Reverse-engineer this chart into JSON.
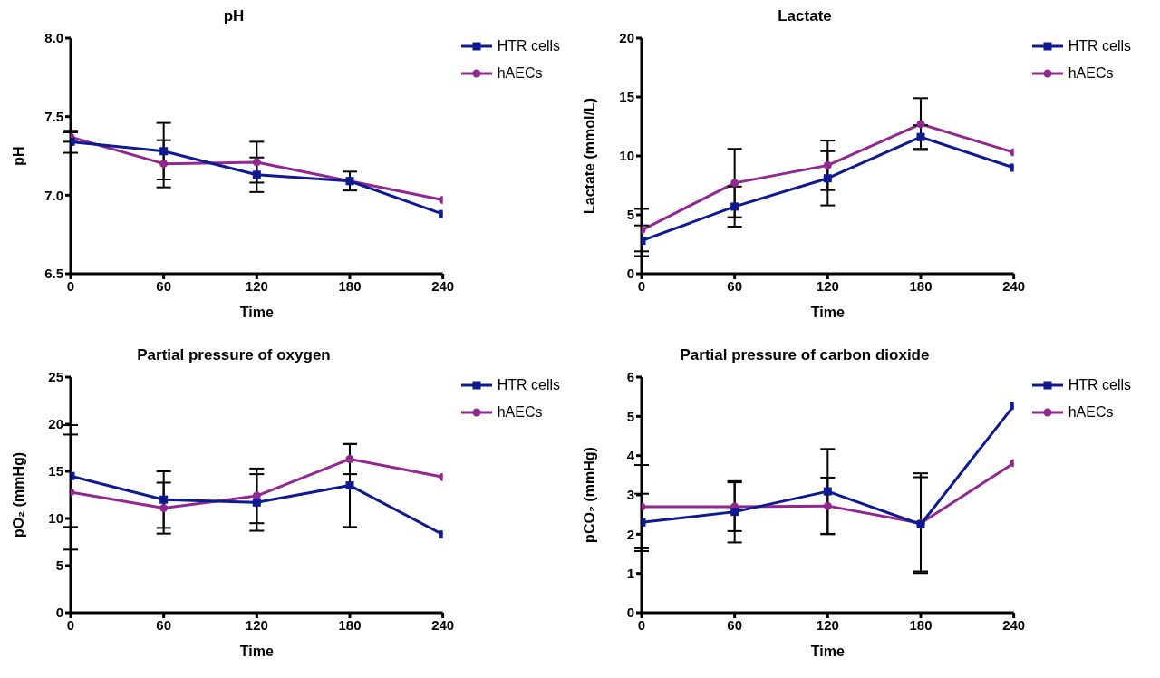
{
  "chart_data": [
    {
      "type": "line",
      "title": "pH",
      "xlabel": "Time",
      "ylabel": "pH",
      "x": [
        0,
        60,
        120,
        180,
        240
      ],
      "xlim": [
        0,
        240
      ],
      "xticks": [
        0,
        60,
        120,
        180,
        240
      ],
      "ylim": [
        6.5,
        8.0
      ],
      "yticks": [
        {
          "value": 6.5,
          "label": "6.5"
        },
        {
          "value": 7.0,
          "label": "7.0"
        },
        {
          "value": 7.5,
          "label": "7.5"
        },
        {
          "value": 8.0,
          "label": "8.0"
        }
      ],
      "grid": false,
      "legend": "top right",
      "series": [
        {
          "name": "HTR cells",
          "color": "#0d1a91",
          "marker": "square",
          "values": [
            7.34,
            7.28,
            7.13,
            7.09,
            6.88
          ],
          "errors": [
            0.07,
            0.18,
            0.11,
            0.06,
            null
          ]
        },
        {
          "name": "hAECs",
          "color": "#92278f",
          "marker": "circle",
          "values": [
            7.37,
            7.2,
            7.21,
            7.09,
            6.97
          ],
          "errors": [
            0.03,
            0.15,
            0.13,
            null,
            null
          ]
        }
      ]
    },
    {
      "type": "line",
      "title": "Lactate",
      "xlabel": "Time",
      "ylabel": "Lactate (mmol/L)",
      "x": [
        0,
        60,
        120,
        180,
        240
      ],
      "xlim": [
        0,
        240
      ],
      "xticks": [
        0,
        60,
        120,
        180,
        240
      ],
      "ylim": [
        0,
        20
      ],
      "yticks": [
        0,
        5,
        10,
        15,
        20
      ],
      "grid": false,
      "legend": "top right",
      "series": [
        {
          "name": "HTR cells",
          "color": "#0d1a91",
          "marker": "square",
          "values": [
            2.8,
            5.7,
            8.1,
            11.6,
            9.0
          ],
          "errors": [
            1.3,
            1.7,
            2.3,
            1.0,
            null
          ]
        },
        {
          "name": "hAECs",
          "color": "#92278f",
          "marker": "circle",
          "values": [
            3.7,
            7.7,
            9.2,
            12.7,
            10.3
          ],
          "errors": [
            1.8,
            2.9,
            2.1,
            2.2,
            null
          ]
        }
      ]
    },
    {
      "type": "line",
      "title": "Partial pressure of oxygen",
      "xlabel": "Time",
      "ylabel": "pO₂ (mmHg)",
      "x": [
        0,
        60,
        120,
        180,
        240
      ],
      "xlim": [
        0,
        240
      ],
      "xticks": [
        0,
        60,
        120,
        180,
        240
      ],
      "ylim": [
        0,
        25
      ],
      "yticks": [
        0,
        5,
        10,
        15,
        20,
        25
      ],
      "grid": false,
      "legend": "top right",
      "series": [
        {
          "name": "HTR cells",
          "color": "#0d1a91",
          "marker": "square",
          "values": [
            14.5,
            12.0,
            11.7,
            13.5,
            8.3
          ],
          "errors": [
            5.4,
            3.0,
            3.0,
            4.4,
            null
          ]
        },
        {
          "name": "hAECs",
          "color": "#92278f",
          "marker": "circle",
          "values": [
            12.8,
            11.1,
            12.4,
            16.3,
            14.4
          ],
          "errors": [
            6.1,
            2.7,
            2.9,
            1.6,
            null
          ]
        }
      ]
    },
    {
      "type": "line",
      "title": "Partial pressure of carbon dioxide",
      "xlabel": "Time",
      "ylabel": "pCO₂ (mmHg)",
      "x": [
        0,
        60,
        120,
        180,
        240
      ],
      "xlim": [
        0,
        240
      ],
      "xticks": [
        0,
        60,
        120,
        180,
        240
      ],
      "ylim": [
        0,
        6
      ],
      "yticks": [
        0,
        1,
        2,
        3,
        4,
        5,
        6
      ],
      "grid": false,
      "legend": "top right",
      "series": [
        {
          "name": "HTR cells",
          "color": "#0d1a91",
          "marker": "square",
          "values": [
            2.3,
            2.57,
            3.09,
            2.25,
            5.27
          ],
          "errors": [
            0.73,
            0.78,
            1.08,
            1.2,
            null
          ]
        },
        {
          "name": "hAECs",
          "color": "#92278f",
          "marker": "circle",
          "values": [
            2.7,
            2.7,
            2.72,
            2.28,
            3.81
          ],
          "errors": [
            1.06,
            0.62,
            0.72,
            1.27,
            null
          ]
        }
      ]
    }
  ]
}
